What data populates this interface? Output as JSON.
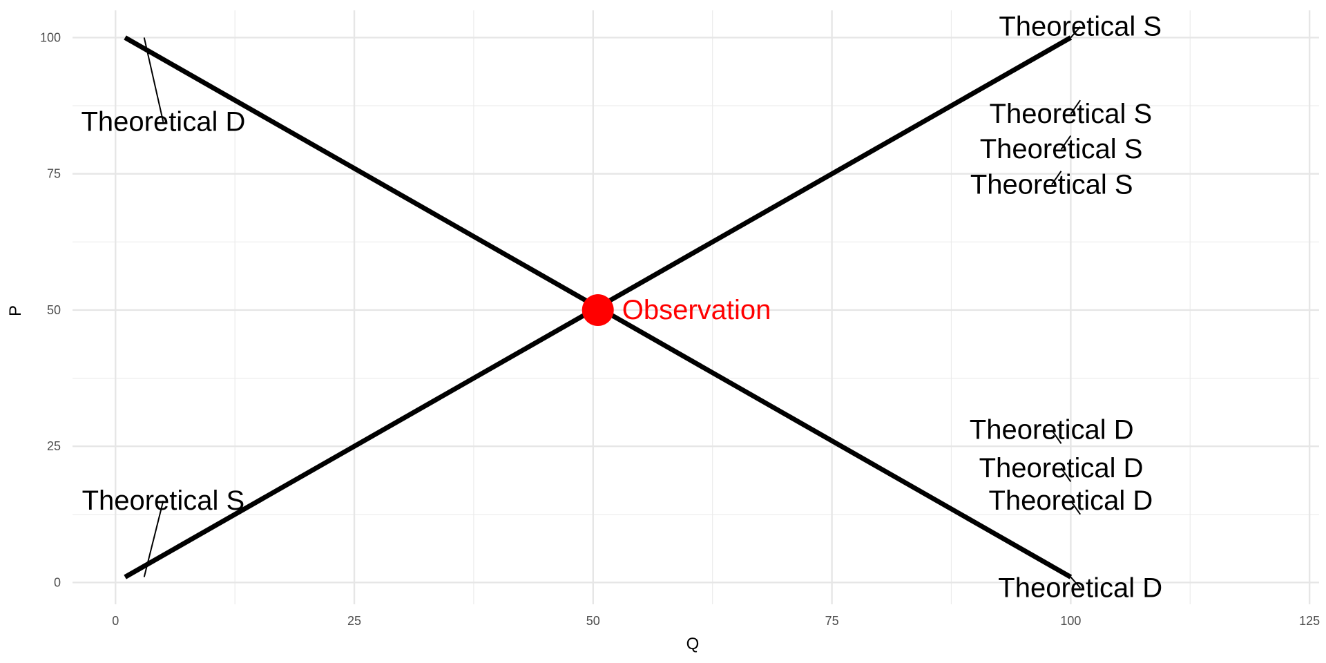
{
  "chart_data": {
    "type": "line",
    "title": "",
    "xlabel": "Q",
    "ylabel": "P",
    "xlim": [
      -4.5,
      126
    ],
    "ylim": [
      -4,
      105
    ],
    "x_ticks": [
      0,
      25,
      50,
      75,
      100,
      125
    ],
    "y_ticks": [
      0,
      25,
      50,
      75,
      100
    ],
    "x_minor_ticks": [
      12.5,
      37.5,
      62.5,
      87.5,
      112.5
    ],
    "y_minor_ticks": [
      12.5,
      37.5,
      62.5,
      87.5
    ],
    "grid": true,
    "series": [
      {
        "label": "Theoretical D",
        "color": "#000000",
        "points": [
          {
            "x": 1,
            "y": 100
          },
          {
            "x": 100,
            "y": 1
          }
        ]
      },
      {
        "label": "Theoretical S",
        "color": "#000000",
        "points": [
          {
            "x": 1,
            "y": 1
          },
          {
            "x": 100,
            "y": 100
          }
        ]
      }
    ],
    "observation": {
      "label": "Observation",
      "x": 50.5,
      "y": 50,
      "color": "#ff0000"
    },
    "annotations": [
      {
        "series": "Theoretical D",
        "text": "Theoretical D",
        "anchor": {
          "x": 3,
          "y": 100
        },
        "label_at": {
          "x": 5,
          "y": 84.5
        }
      },
      {
        "series": "Theoretical S",
        "text": "Theoretical S",
        "anchor": {
          "x": 3,
          "y": 1
        },
        "label_at": {
          "x": 5,
          "y": 15
        }
      },
      {
        "series": "Theoretical S",
        "text": "Theoretical S",
        "anchor": {
          "x": 100,
          "y": 100
        },
        "label_at": {
          "x": 101,
          "y": 102
        }
      },
      {
        "series": "Theoretical S",
        "text": "Theoretical S",
        "anchor": {
          "x": 101,
          "y": 88.5
        },
        "label_at": {
          "x": 100,
          "y": 86
        }
      },
      {
        "series": "Theoretical S",
        "text": "Theoretical S",
        "anchor": {
          "x": 100,
          "y": 82
        },
        "label_at": {
          "x": 99,
          "y": 79.5
        }
      },
      {
        "series": "Theoretical S",
        "text": "Theoretical S",
        "anchor": {
          "x": 99,
          "y": 75.5
        },
        "label_at": {
          "x": 98,
          "y": 73
        }
      },
      {
        "series": "Theoretical D",
        "text": "Theoretical D",
        "anchor": {
          "x": 99,
          "y": 25.5
        },
        "label_at": {
          "x": 98,
          "y": 28
        }
      },
      {
        "series": "Theoretical D",
        "text": "Theoretical D",
        "anchor": {
          "x": 100,
          "y": 18.5
        },
        "label_at": {
          "x": 99,
          "y": 21
        }
      },
      {
        "series": "Theoretical D",
        "text": "Theoretical D",
        "anchor": {
          "x": 101,
          "y": 12.5
        },
        "label_at": {
          "x": 100,
          "y": 15
        }
      },
      {
        "series": "Theoretical D",
        "text": "Theoretical D",
        "anchor": {
          "x": 100,
          "y": 1
        },
        "label_at": {
          "x": 101,
          "y": -1
        }
      }
    ]
  }
}
